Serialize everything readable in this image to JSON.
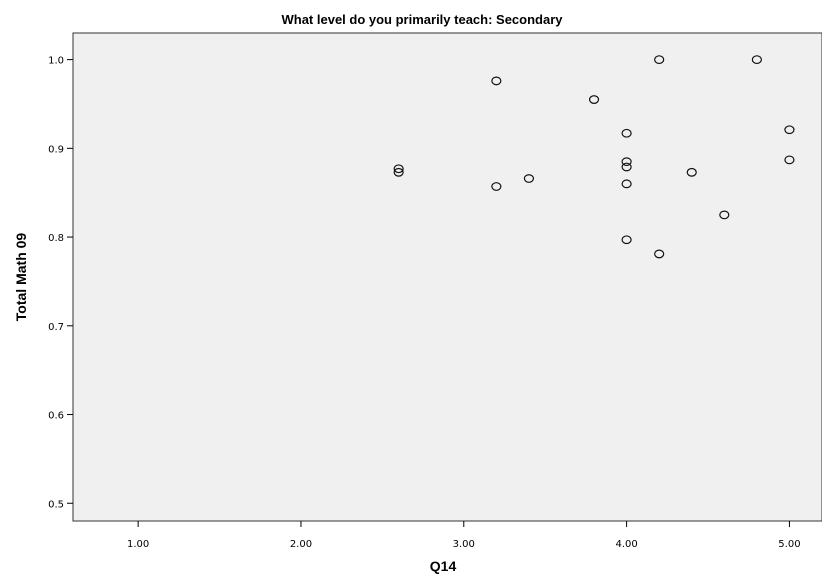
{
  "chart_data": {
    "type": "scatter",
    "title": "What level do you primarily teach: Secondary",
    "xlabel": "Q14",
    "ylabel": "Total Math 09",
    "xlim": [
      0.6,
      5.2
    ],
    "ylim": [
      0.48,
      1.03
    ],
    "x_ticks": [
      "1.00",
      "2.00",
      "3.00",
      "4.00",
      "5.00"
    ],
    "y_ticks": [
      "0.5",
      "0.6",
      "0.7",
      "0.8",
      "0.9",
      "1.0"
    ],
    "grid": false,
    "marker": "open-circle",
    "plot_background": "#f0f0f0",
    "points": [
      {
        "x": 2.6,
        "y": 0.877
      },
      {
        "x": 2.6,
        "y": 0.873
      },
      {
        "x": 3.2,
        "y": 0.976
      },
      {
        "x": 3.2,
        "y": 0.857
      },
      {
        "x": 3.4,
        "y": 0.866
      },
      {
        "x": 3.8,
        "y": 0.955
      },
      {
        "x": 4.0,
        "y": 0.917
      },
      {
        "x": 4.0,
        "y": 0.885
      },
      {
        "x": 4.0,
        "y": 0.879
      },
      {
        "x": 4.0,
        "y": 0.86
      },
      {
        "x": 4.0,
        "y": 0.797
      },
      {
        "x": 4.2,
        "y": 1.0
      },
      {
        "x": 4.2,
        "y": 0.781
      },
      {
        "x": 4.4,
        "y": 0.873
      },
      {
        "x": 4.6,
        "y": 0.825
      },
      {
        "x": 4.8,
        "y": 1.0
      },
      {
        "x": 5.0,
        "y": 0.921
      },
      {
        "x": 5.0,
        "y": 0.887
      }
    ]
  }
}
